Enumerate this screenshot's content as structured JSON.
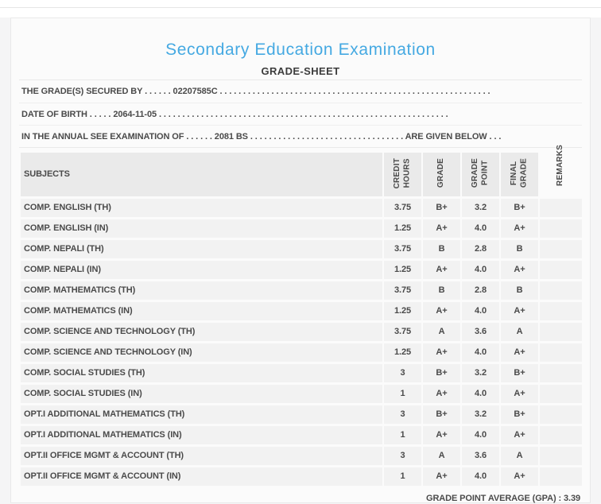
{
  "colors": {
    "title_accent": "#45a9e2",
    "header_band": "#eaeaea",
    "row_background": "#f2f2f2",
    "page_background": "#f5f5f6",
    "text": "#4a4a4a"
  },
  "header": {
    "title": "Secondary Education Examination",
    "subtitle": "GRADE-SHEET"
  },
  "info_lines": [
    "THE GRADE(S) SECURED BY . . . . . . 02207585C . . . . . . . . . . . . . . . . . . . . . . . . . . . . . . . . . . . . . . . . . . . . . . . . . . . . . . . . . .",
    "DATE OF BIRTH . . . . . 2064-11-05 . . . . . . . . . . . . . . . . . . . . . . . . . . . . . . . . . . . . . . . . . . . . . . . . . . . . . . . . . . . . . .",
    "IN THE ANNUAL SEE EXAMINATION OF . . . . . . 2081 BS . . . . . . . . . . . . . . . . . . . . . . . . . . . . . . . . . ARE GIVEN BELOW . . ."
  ],
  "table": {
    "subject_column_header": "SUBJECTS",
    "column_headers": [
      "CREDIT\nHOURS",
      "GRADE",
      "GRADE\nPOINT",
      "FINAL\nGRADE",
      "REMARKS"
    ],
    "rows": [
      {
        "subject": "COMP. ENGLISH (TH)",
        "credit_hours": "3.75",
        "grade": "B+",
        "grade_point": "3.2",
        "final_grade": "B+",
        "remarks": ""
      },
      {
        "subject": "COMP. ENGLISH (IN)",
        "credit_hours": "1.25",
        "grade": "A+",
        "grade_point": "4.0",
        "final_grade": "A+",
        "remarks": ""
      },
      {
        "subject": "COMP. NEPALI (TH)",
        "credit_hours": "3.75",
        "grade": "B",
        "grade_point": "2.8",
        "final_grade": "B",
        "remarks": ""
      },
      {
        "subject": "COMP. NEPALI (IN)",
        "credit_hours": "1.25",
        "grade": "A+",
        "grade_point": "4.0",
        "final_grade": "A+",
        "remarks": ""
      },
      {
        "subject": "COMP. MATHEMATICS (TH)",
        "credit_hours": "3.75",
        "grade": "B",
        "grade_point": "2.8",
        "final_grade": "B",
        "remarks": ""
      },
      {
        "subject": "COMP. MATHEMATICS (IN)",
        "credit_hours": "1.25",
        "grade": "A+",
        "grade_point": "4.0",
        "final_grade": "A+",
        "remarks": ""
      },
      {
        "subject": "COMP. SCIENCE AND TECHNOLOGY (TH)",
        "credit_hours": "3.75",
        "grade": "A",
        "grade_point": "3.6",
        "final_grade": "A",
        "remarks": ""
      },
      {
        "subject": "COMP. SCIENCE AND TECHNOLOGY (IN)",
        "credit_hours": "1.25",
        "grade": "A+",
        "grade_point": "4.0",
        "final_grade": "A+",
        "remarks": ""
      },
      {
        "subject": "COMP. SOCIAL STUDIES (TH)",
        "credit_hours": "3",
        "grade": "B+",
        "grade_point": "3.2",
        "final_grade": "B+",
        "remarks": ""
      },
      {
        "subject": "COMP. SOCIAL STUDIES (IN)",
        "credit_hours": "1",
        "grade": "A+",
        "grade_point": "4.0",
        "final_grade": "A+",
        "remarks": ""
      },
      {
        "subject": "OPT.I ADDITIONAL MATHEMATICS (TH)",
        "credit_hours": "3",
        "grade": "B+",
        "grade_point": "3.2",
        "final_grade": "B+",
        "remarks": ""
      },
      {
        "subject": "OPT.I ADDITIONAL MATHEMATICS (IN)",
        "credit_hours": "1",
        "grade": "A+",
        "grade_point": "4.0",
        "final_grade": "A+",
        "remarks": ""
      },
      {
        "subject": "OPT.II OFFICE MGMT & ACCOUNT (TH)",
        "credit_hours": "3",
        "grade": "A",
        "grade_point": "3.6",
        "final_grade": "A",
        "remarks": ""
      },
      {
        "subject": "OPT.II OFFICE MGMT & ACCOUNT (IN)",
        "credit_hours": "1",
        "grade": "A+",
        "grade_point": "4.0",
        "final_grade": "A+",
        "remarks": ""
      }
    ]
  },
  "footer": {
    "gpa": "GRADE POINT AVERAGE (GPA) : 3.39"
  }
}
